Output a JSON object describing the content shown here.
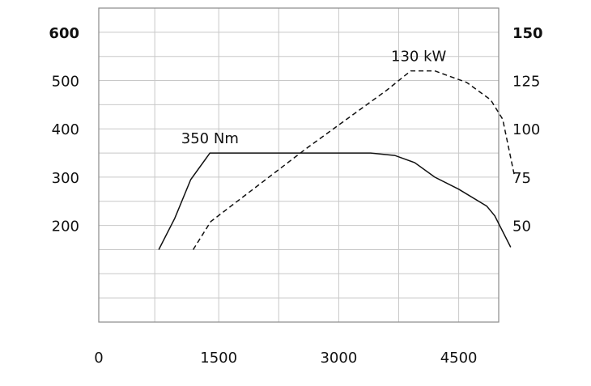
{
  "chart_data": {
    "type": "line",
    "title": "",
    "xlabel": "",
    "ylabel": "",
    "xlim": [
      0,
      5000
    ],
    "ylim_left": [
      0,
      650
    ],
    "ylim_right": [
      0,
      162.5
    ],
    "grid": true,
    "x_ticks": [
      {
        "value": 0,
        "label": "0"
      },
      {
        "value": 1500,
        "label": "1500"
      },
      {
        "value": 3000,
        "label": "3000"
      },
      {
        "value": 4500,
        "label": "4500"
      }
    ],
    "x_gridlines": [
      0,
      700,
      1500,
      2250,
      3000,
      3750,
      4500,
      5000
    ],
    "y_left_ticks": [
      {
        "value": 600,
        "label": "600",
        "bold": true
      },
      {
        "value": 500,
        "label": "500",
        "bold": false
      },
      {
        "value": 400,
        "label": "400",
        "bold": false
      },
      {
        "value": 300,
        "label": "300",
        "bold": false
      },
      {
        "value": 200,
        "label": "200",
        "bold": false
      }
    ],
    "y_right_ticks": [
      {
        "value": 150,
        "label": "150",
        "bold": true
      },
      {
        "value": 125,
        "label": "125",
        "bold": false
      },
      {
        "value": 100,
        "label": "100",
        "bold": false
      },
      {
        "value": 75,
        "label": "75",
        "bold": false
      },
      {
        "value": 50,
        "label": "50",
        "bold": false
      }
    ],
    "y_gridlines_left": [
      50,
      100,
      150,
      200,
      250,
      300,
      350,
      400,
      450,
      500,
      550,
      600,
      650
    ],
    "series": [
      {
        "axis": "left",
        "style": "solid",
        "points": [
          [
            750,
            150
          ],
          [
            950,
            215
          ],
          [
            1150,
            295
          ],
          [
            1390,
            350
          ],
          [
            3400,
            350
          ],
          [
            3700,
            345
          ],
          [
            3950,
            330
          ],
          [
            4200,
            300
          ],
          [
            4500,
            275
          ],
          [
            4850,
            240
          ],
          [
            4950,
            220
          ],
          [
            5150,
            155
          ]
        ]
      },
      {
        "axis": "right",
        "style": "dashed",
        "points": [
          [
            1180,
            37.5
          ],
          [
            1400,
            52
          ],
          [
            2000,
            71
          ],
          [
            2600,
            90
          ],
          [
            3200,
            108
          ],
          [
            3600,
            120
          ],
          [
            3900,
            130
          ],
          [
            4200,
            130
          ],
          [
            4600,
            124
          ],
          [
            4900,
            115
          ],
          [
            5050,
            105
          ],
          [
            5200,
            75
          ]
        ]
      }
    ],
    "annotations": [
      {
        "text": "350 Nm",
        "x": 1390,
        "y": 350,
        "axis": "left",
        "anchor": "middle"
      },
      {
        "text": "130 kW",
        "x": 4000,
        "y": 130,
        "axis": "right",
        "anchor": "middle"
      }
    ]
  }
}
